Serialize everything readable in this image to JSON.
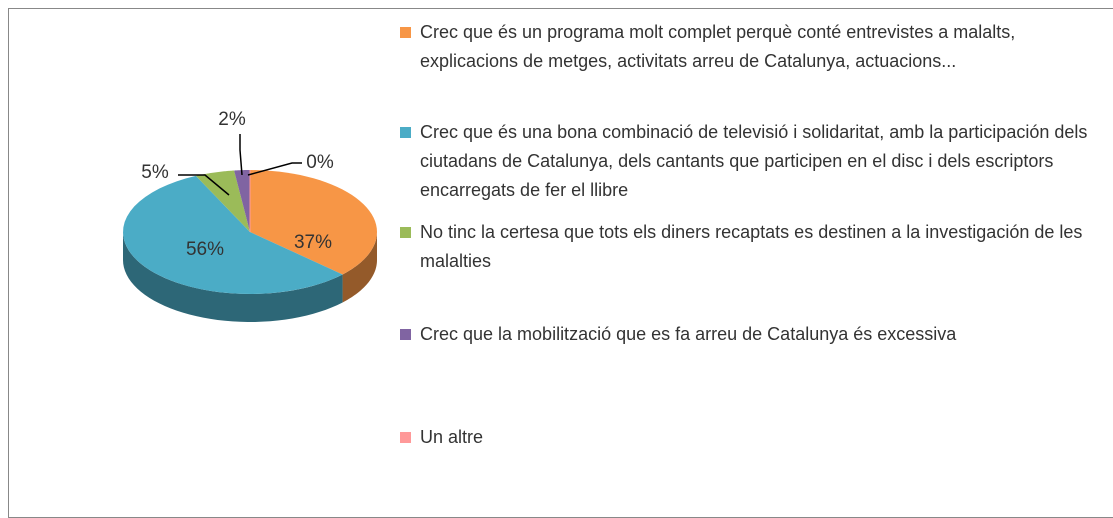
{
  "chart_data": {
    "type": "pie3d",
    "series": [
      {
        "name": "Crec que és un programa molt complet perquè conté entrevistes a malalts, explicacions de metges, activitats arreu de Catalunya, actuacions...",
        "color": "#f79646"
      },
      {
        "name": "Crec que és una bona combinació de televisió i solidaritat, amb la participación dels ciutadans de Catalunya, dels cantants que participen en el disc i dels escriptors encarregats de fer el llibre",
        "color": "#4bacc6"
      },
      {
        "name": "No tinc la certesa que tots els diners recaptats es destinen a la investigación de les malalties",
        "color": "#9bbb59"
      },
      {
        "name": "Crec que la mobilització que es fa arreu de Catalunya és excessiva",
        "color": "#8064a2"
      },
      {
        "name": "Un altre",
        "color": "#ff9999"
      }
    ],
    "values": [
      37,
      56,
      5,
      2,
      0
    ],
    "value_labels": [
      "37%",
      "56%",
      "5%",
      "2%",
      "0%"
    ],
    "legend": "right"
  }
}
